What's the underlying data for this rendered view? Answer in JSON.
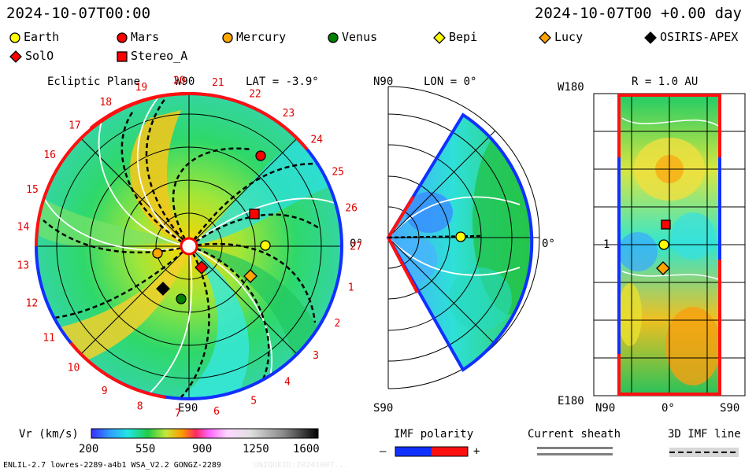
{
  "header": {
    "left_time": "2024-10-07T00:00",
    "right_time": "2024-10-07T00 +0.00 day"
  },
  "legend": [
    {
      "label": "Earth",
      "shape": "circle",
      "color": "#ffff00"
    },
    {
      "label": "Mars",
      "shape": "circle",
      "color": "#ff0000"
    },
    {
      "label": "Mercury",
      "shape": "circle",
      "color": "#ffa500"
    },
    {
      "label": "Venus",
      "shape": "circle",
      "color": "#008000"
    },
    {
      "label": "Bepi",
      "shape": "diamond",
      "color": "#ffff00"
    },
    {
      "label": "Lucy",
      "shape": "diamond",
      "color": "#ffa500"
    },
    {
      "label": "OSIRIS-APEX",
      "shape": "diamond",
      "color": "#000000"
    },
    {
      "label": "SolO",
      "shape": "diamond",
      "color": "#ff0000"
    },
    {
      "label": "Stereo_A",
      "shape": "square",
      "color": "#ff0000"
    }
  ],
  "panels": {
    "ecliptic": {
      "title": "Ecliptic Plane",
      "top_label": "W90",
      "bottom_label": "E90",
      "lat_label": "LAT = -3.9°",
      "zero_label": "0°",
      "sector_numbers": [
        "1",
        "2",
        "3",
        "4",
        "5",
        "6",
        "7",
        "8",
        "9",
        "10",
        "11",
        "12",
        "13",
        "14",
        "15",
        "16",
        "17",
        "18",
        "19",
        "20",
        "21",
        "22",
        "23",
        "24",
        "25",
        "26",
        "27"
      ]
    },
    "meridional": {
      "top_left": "N90",
      "bottom_left": "S90",
      "lon_label": "LON = 0°",
      "zero_label": "0°"
    },
    "radial": {
      "r_label": "R = 1.0 AU",
      "top_left": "W180",
      "bottom_left": "E180",
      "mid_label": "1",
      "x_labels": [
        "N90",
        "0°",
        "S90"
      ]
    }
  },
  "colorbar": {
    "label": "Vr (km/s)",
    "ticks": [
      "200",
      "550",
      "900",
      "1250",
      "1600"
    ]
  },
  "imf": {
    "label": "IMF polarity",
    "minus": "–",
    "plus": "+"
  },
  "sheath": {
    "label": "Current sheath"
  },
  "imfline": {
    "label": "3D IMF line"
  },
  "footer": {
    "left": "ENLIL-2.7 lowres-2289-a4b1 WSA_V2.2 GONGZ-2289",
    "right": "UNIQUEID:20241007..."
  }
}
